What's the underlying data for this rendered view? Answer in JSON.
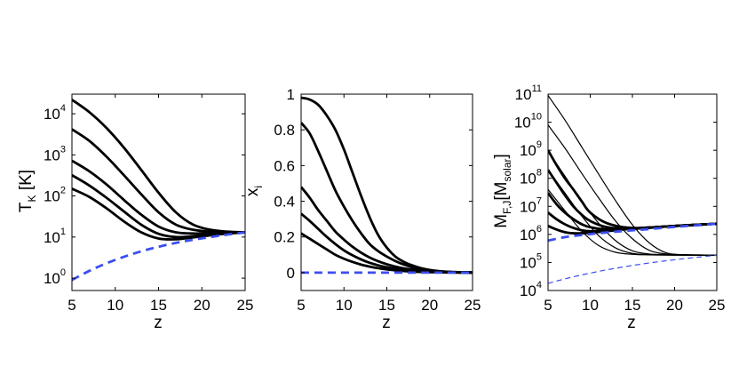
{
  "chart_data": [
    {
      "type": "line",
      "xlabel": "z",
      "ylabel": {
        "main": "T",
        "sub": "K",
        "suffix": " [K]"
      },
      "yscale": "log",
      "xlim": [
        5,
        25
      ],
      "ylim": [
        0.5,
        30000
      ],
      "xticks": [
        "5",
        "10",
        "15",
        "20",
        "25"
      ],
      "yticks": [
        {
          "base": "10",
          "exp": "0",
          "value": 1
        },
        {
          "base": "10",
          "exp": "1",
          "value": 10
        },
        {
          "base": "10",
          "exp": "2",
          "value": 100
        },
        {
          "base": "10",
          "exp": "3",
          "value": 1000
        },
        {
          "base": "10",
          "exp": "4",
          "value": 10000
        }
      ],
      "series": [
        {
          "color": "#000000",
          "style": "solid",
          "width": "thick",
          "x": [
            5,
            7,
            9,
            11,
            13,
            15,
            17,
            19,
            21,
            23,
            25
          ],
          "y": [
            22000,
            11000,
            4500,
            1500,
            430,
            120,
            40,
            20,
            15,
            13.5,
            13
          ]
        },
        {
          "color": "#000000",
          "style": "solid",
          "width": "thick",
          "x": [
            5,
            7,
            9,
            11,
            13,
            15,
            17,
            19,
            21,
            23,
            25
          ],
          "y": [
            4200,
            2200,
            900,
            320,
            110,
            40,
            20,
            15,
            13.5,
            13,
            13
          ]
        },
        {
          "color": "#000000",
          "style": "solid",
          "width": "thick",
          "x": [
            5,
            7,
            9,
            11,
            13,
            15,
            17,
            19,
            21,
            23,
            25
          ],
          "y": [
            720,
            400,
            190,
            80,
            35,
            18,
            13,
            12.2,
            12.5,
            12.8,
            13
          ]
        },
        {
          "color": "#000000",
          "style": "solid",
          "width": "thick",
          "x": [
            5,
            7,
            9,
            11,
            13,
            15,
            17,
            19,
            21,
            23,
            25
          ],
          "y": [
            320,
            180,
            90,
            42,
            20,
            12,
            10,
            10.5,
            11.5,
            12.5,
            13
          ]
        },
        {
          "color": "#000000",
          "style": "solid",
          "width": "thick",
          "x": [
            5,
            7,
            9,
            11,
            13,
            15,
            17,
            19,
            21,
            23,
            25
          ],
          "y": [
            150,
            95,
            50,
            24,
            13,
            9.2,
            8.8,
            9.8,
            11,
            12.2,
            13
          ]
        },
        {
          "color": "#3b4ef0",
          "style": "dashed",
          "width": "thick",
          "x": [
            5,
            7,
            9,
            11,
            13,
            15,
            17,
            19,
            21,
            23,
            25
          ],
          "y": [
            0.9,
            1.5,
            2.3,
            3.3,
            4.5,
            5.8,
            7.2,
            8.6,
            10,
            11.5,
            13
          ]
        }
      ]
    },
    {
      "type": "line",
      "xlabel": "z",
      "ylabel": {
        "main": "x",
        "sub": "i",
        "suffix": ""
      },
      "yscale": "linear",
      "xlim": [
        5,
        25
      ],
      "ylim": [
        -0.1,
        1.0
      ],
      "xticks": [
        "5",
        "10",
        "15",
        "20",
        "25"
      ],
      "yticks": [
        {
          "label": "0",
          "value": 0
        },
        {
          "label": "0.2",
          "value": 0.2
        },
        {
          "label": "0.4",
          "value": 0.4
        },
        {
          "label": "0.6",
          "value": 0.6
        },
        {
          "label": "0.8",
          "value": 0.8
        },
        {
          "label": "1",
          "value": 1
        }
      ],
      "series": [
        {
          "color": "#000000",
          "style": "solid",
          "width": "thick",
          "x": [
            5,
            6,
            7,
            8,
            9,
            10,
            11,
            12,
            13,
            14,
            15,
            16,
            17,
            18,
            19,
            20,
            21,
            22,
            23,
            24,
            25
          ],
          "y": [
            0.98,
            0.97,
            0.94,
            0.88,
            0.8,
            0.69,
            0.56,
            0.43,
            0.31,
            0.21,
            0.14,
            0.09,
            0.06,
            0.04,
            0.025,
            0.015,
            0.009,
            0.005,
            0.003,
            0.002,
            0.001
          ]
        },
        {
          "color": "#000000",
          "style": "solid",
          "width": "thick",
          "x": [
            5,
            6,
            7,
            8,
            9,
            10,
            11,
            12,
            13,
            14,
            15,
            16,
            17,
            18,
            19,
            20,
            21,
            22,
            23,
            24,
            25
          ],
          "y": [
            0.84,
            0.78,
            0.68,
            0.57,
            0.46,
            0.37,
            0.29,
            0.22,
            0.16,
            0.12,
            0.09,
            0.065,
            0.045,
            0.03,
            0.02,
            0.013,
            0.008,
            0.005,
            0.003,
            0.002,
            0.001
          ]
        },
        {
          "color": "#000000",
          "style": "solid",
          "width": "thick",
          "x": [
            5,
            6,
            7,
            8,
            9,
            10,
            11,
            12,
            13,
            14,
            15,
            16,
            17,
            18,
            19,
            20,
            21,
            22,
            23,
            24,
            25
          ],
          "y": [
            0.48,
            0.42,
            0.35,
            0.29,
            0.23,
            0.185,
            0.145,
            0.112,
            0.085,
            0.064,
            0.047,
            0.034,
            0.024,
            0.017,
            0.011,
            0.007,
            0.004,
            0.003,
            0.002,
            0.001,
            0.0005
          ]
        },
        {
          "color": "#000000",
          "style": "solid",
          "width": "thick",
          "x": [
            5,
            6,
            7,
            8,
            9,
            10,
            11,
            12,
            13,
            14,
            15,
            16,
            17,
            18,
            19,
            20,
            21,
            22,
            23,
            24,
            25
          ],
          "y": [
            0.33,
            0.29,
            0.245,
            0.2,
            0.16,
            0.125,
            0.097,
            0.074,
            0.055,
            0.041,
            0.03,
            0.022,
            0.015,
            0.01,
            0.007,
            0.004,
            0.003,
            0.002,
            0.001,
            0.0005,
            0.0003
          ]
        },
        {
          "color": "#000000",
          "style": "solid",
          "width": "thick",
          "x": [
            5,
            6,
            7,
            8,
            9,
            10,
            11,
            12,
            13,
            14,
            15,
            16,
            17,
            18,
            19,
            20,
            21,
            22,
            23,
            24,
            25
          ],
          "y": [
            0.22,
            0.19,
            0.16,
            0.13,
            0.1,
            0.078,
            0.06,
            0.045,
            0.034,
            0.025,
            0.018,
            0.013,
            0.009,
            0.006,
            0.004,
            0.003,
            0.002,
            0.001,
            0.0007,
            0.0004,
            0.0002
          ]
        },
        {
          "color": "#3b4ef0",
          "style": "dashed",
          "width": "thick",
          "x": [
            5,
            25
          ],
          "y": [
            0,
            0
          ]
        }
      ]
    },
    {
      "type": "line",
      "xlabel": "z",
      "ylabel": {
        "main": "M",
        "sub": "F,J",
        "bracket_main": "M",
        "bracket_sub": "solar"
      },
      "yscale": "log",
      "xlim": [
        5,
        25
      ],
      "ylim": [
        10000,
        100000000000
      ],
      "xticks": [
        "5",
        "10",
        "15",
        "20",
        "25"
      ],
      "yticks": [
        {
          "base": "10",
          "exp": "4",
          "value": 10000
        },
        {
          "base": "10",
          "exp": "5",
          "value": 100000
        },
        {
          "base": "10",
          "exp": "6",
          "value": 1000000
        },
        {
          "base": "10",
          "exp": "7",
          "value": 10000000
        },
        {
          "base": "10",
          "exp": "8",
          "value": 100000000
        },
        {
          "base": "10",
          "exp": "9",
          "value": 1000000000
        },
        {
          "base": "10",
          "exp": "10",
          "value": 10000000000
        },
        {
          "base": "10",
          "exp": "11",
          "value": 100000000000
        }
      ],
      "series": [
        {
          "color": "#000000",
          "style": "solid",
          "width": "thin",
          "x": [
            5,
            7,
            9,
            11,
            13,
            15,
            17,
            19,
            21,
            23,
            25
          ],
          "y": [
            90000000000,
            12000000000,
            1300000000,
            140000000,
            16000000,
            2200000,
            500000,
            220000,
            190000,
            185000,
            180000
          ]
        },
        {
          "color": "#000000",
          "style": "solid",
          "width": "thin",
          "x": [
            5,
            7,
            9,
            11,
            13,
            15,
            17,
            19,
            21,
            23,
            25
          ],
          "y": [
            8000000000,
            1200000000,
            150000000,
            20000000,
            3000000,
            700000,
            270000,
            200000,
            190000,
            185000,
            180000
          ]
        },
        {
          "color": "#000000",
          "style": "solid",
          "width": "thin",
          "x": [
            5,
            7,
            9,
            11,
            13,
            15,
            17,
            19,
            21,
            23,
            25
          ],
          "y": [
            900000000,
            120000000,
            15000000,
            2500000,
            600000,
            260000,
            200000,
            190000,
            185000,
            182000,
            180000
          ]
        },
        {
          "color": "#000000",
          "style": "solid",
          "width": "thin",
          "x": [
            5,
            7,
            9,
            11,
            13,
            15,
            17,
            19,
            21,
            23,
            25
          ],
          "y": [
            200000000,
            30000000,
            4500000,
            900000,
            330000,
            210000,
            190000,
            185000,
            182000,
            180000,
            180000
          ]
        },
        {
          "color": "#000000",
          "style": "solid",
          "width": "thin",
          "x": [
            5,
            7,
            9,
            11,
            13,
            15,
            17,
            19,
            21,
            23,
            25
          ],
          "y": [
            40000000,
            7000000,
            1300000,
            400000,
            230000,
            195000,
            186000,
            183000,
            181000,
            180000,
            180000
          ]
        },
        {
          "color": "#000000",
          "style": "solid",
          "width": "thick",
          "x": [
            5,
            6,
            7,
            8,
            9,
            10,
            12,
            15,
            20,
            25
          ],
          "y": [
            1000000000,
            300000000,
            100000000,
            40000000,
            15000000,
            6000000,
            2500000,
            1700000,
            2000000,
            2400000
          ]
        },
        {
          "color": "#000000",
          "style": "solid",
          "width": "thick",
          "x": [
            5,
            6,
            7,
            8,
            9,
            10,
            12,
            15,
            20,
            25
          ],
          "y": [
            200000000,
            70000000,
            25000000,
            10000000,
            5000000,
            3000000,
            1800000,
            1600000,
            2000000,
            2400000
          ]
        },
        {
          "color": "#000000",
          "style": "solid",
          "width": "thick",
          "x": [
            5,
            6,
            7,
            8,
            9,
            10,
            12,
            15,
            20,
            25
          ],
          "y": [
            30000000,
            12000000,
            6000000,
            3500000,
            2300000,
            1800000,
            1500000,
            1600000,
            2000000,
            2400000
          ]
        },
        {
          "color": "#000000",
          "style": "solid",
          "width": "thick",
          "x": [
            5,
            6,
            7,
            8,
            9,
            10,
            12,
            15,
            20,
            25
          ],
          "y": [
            6000000,
            3500000,
            2300000,
            1700000,
            1400000,
            1300000,
            1400000,
            1600000,
            2000000,
            2400000
          ]
        },
        {
          "color": "#000000",
          "style": "solid",
          "width": "thick",
          "x": [
            5,
            6,
            7,
            8,
            9,
            10,
            12,
            15,
            20,
            25
          ],
          "y": [
            2000000,
            1500000,
            1200000,
            1100000,
            1100000,
            1150000,
            1300000,
            1600000,
            2000000,
            2400000
          ]
        },
        {
          "color": "#3b4ef0",
          "style": "dashed",
          "width": "thick",
          "x": [
            5,
            7,
            9,
            11,
            13,
            15,
            17,
            19,
            21,
            23,
            25
          ],
          "y": [
            600000,
            800000,
            950000,
            1100000,
            1250000,
            1400000,
            1550000,
            1750000,
            1950000,
            2150000,
            2400000
          ]
        },
        {
          "color": "#3b4ef0",
          "style": "dashed",
          "width": "thin",
          "x": [
            5,
            7,
            9,
            11,
            13,
            15,
            17,
            19,
            21,
            23,
            25
          ],
          "y": [
            18000,
            26000,
            36000,
            48000,
            62000,
            78000,
            96000,
            115000,
            135000,
            157000,
            180000
          ]
        }
      ]
    }
  ]
}
